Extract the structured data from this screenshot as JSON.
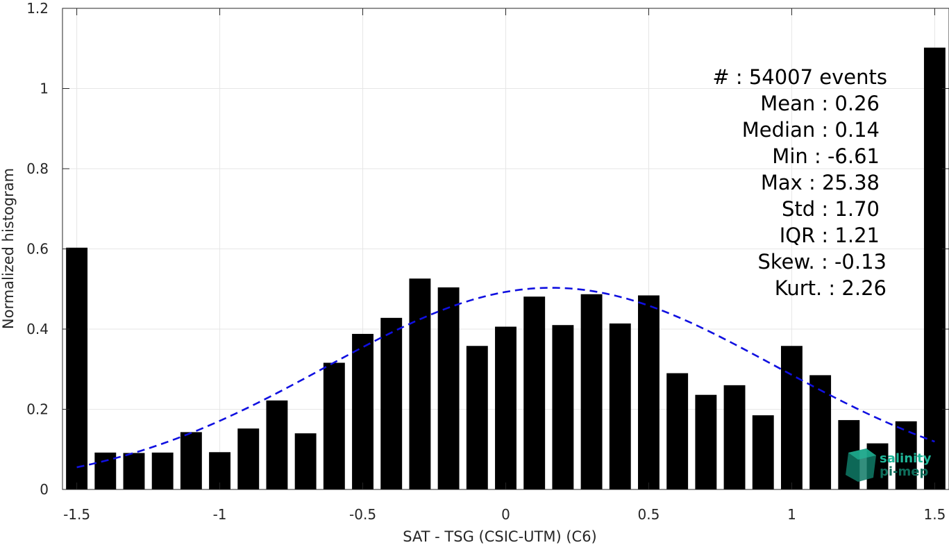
{
  "chart_data": {
    "type": "bar",
    "xlabel": "SAT - TSG (CSIC-UTM) (C6)",
    "ylabel": "Normalized histogram",
    "xlim": [
      -1.55,
      1.55
    ],
    "ylim": [
      0,
      1.2
    ],
    "xticks": [
      -1.5,
      -1,
      -0.5,
      0,
      0.5,
      1,
      1.5
    ],
    "xtick_labels": [
      "-1.5",
      "-1",
      "-0.5",
      "0",
      "0.5",
      "1",
      "1.5"
    ],
    "yticks": [
      0,
      0.2,
      0.4,
      0.6,
      0.8,
      1,
      1.2
    ],
    "ytick_labels": [
      "0",
      "0.2",
      "0.4",
      "0.6",
      "0.8",
      "1",
      "1.2"
    ],
    "grid": true,
    "bar_color": "#000000",
    "curve_color": "#1010e0",
    "bars": {
      "x": [
        -1.5,
        -1.4,
        -1.3,
        -1.2,
        -1.1,
        -1.0,
        -0.9,
        -0.8,
        -0.7,
        -0.6,
        -0.5,
        -0.4,
        -0.3,
        -0.2,
        -0.1,
        0.0,
        0.1,
        0.2,
        0.3,
        0.4,
        0.5,
        0.6,
        0.7,
        0.8,
        0.9,
        1.0,
        1.1,
        1.2,
        1.3,
        1.4,
        1.5
      ],
      "values": [
        0.603,
        0.092,
        0.091,
        0.092,
        0.143,
        0.093,
        0.152,
        0.222,
        0.14,
        0.316,
        0.388,
        0.428,
        0.526,
        0.504,
        0.358,
        0.406,
        0.481,
        0.41,
        0.487,
        0.414,
        0.484,
        0.29,
        0.236,
        0.26,
        0.185,
        0.358,
        0.285,
        0.173,
        0.115,
        0.17,
        1.102
      ]
    },
    "fit_curve": {
      "style": "dashed",
      "mean": 0.16,
      "std": 0.79,
      "peak": 0.503,
      "x_range": [
        -1.5,
        1.5
      ]
    },
    "stats": [
      {
        "label": "#  : 54007 events"
      },
      {
        "label": "Mean : 0.26"
      },
      {
        "label": "Median : 0.14"
      },
      {
        "label": "Min : -6.61"
      },
      {
        "label": "Max : 25.38"
      },
      {
        "label": "Std : 1.70"
      },
      {
        "label": "IQR : 1.21"
      },
      {
        "label": "Skew. : -0.13"
      },
      {
        "label": "Kurt. : 2.26"
      }
    ],
    "logo": {
      "line1": "salinity",
      "line2": "pi-mep",
      "color1": "#1fb89a",
      "color2": "#0f6e5c"
    }
  }
}
